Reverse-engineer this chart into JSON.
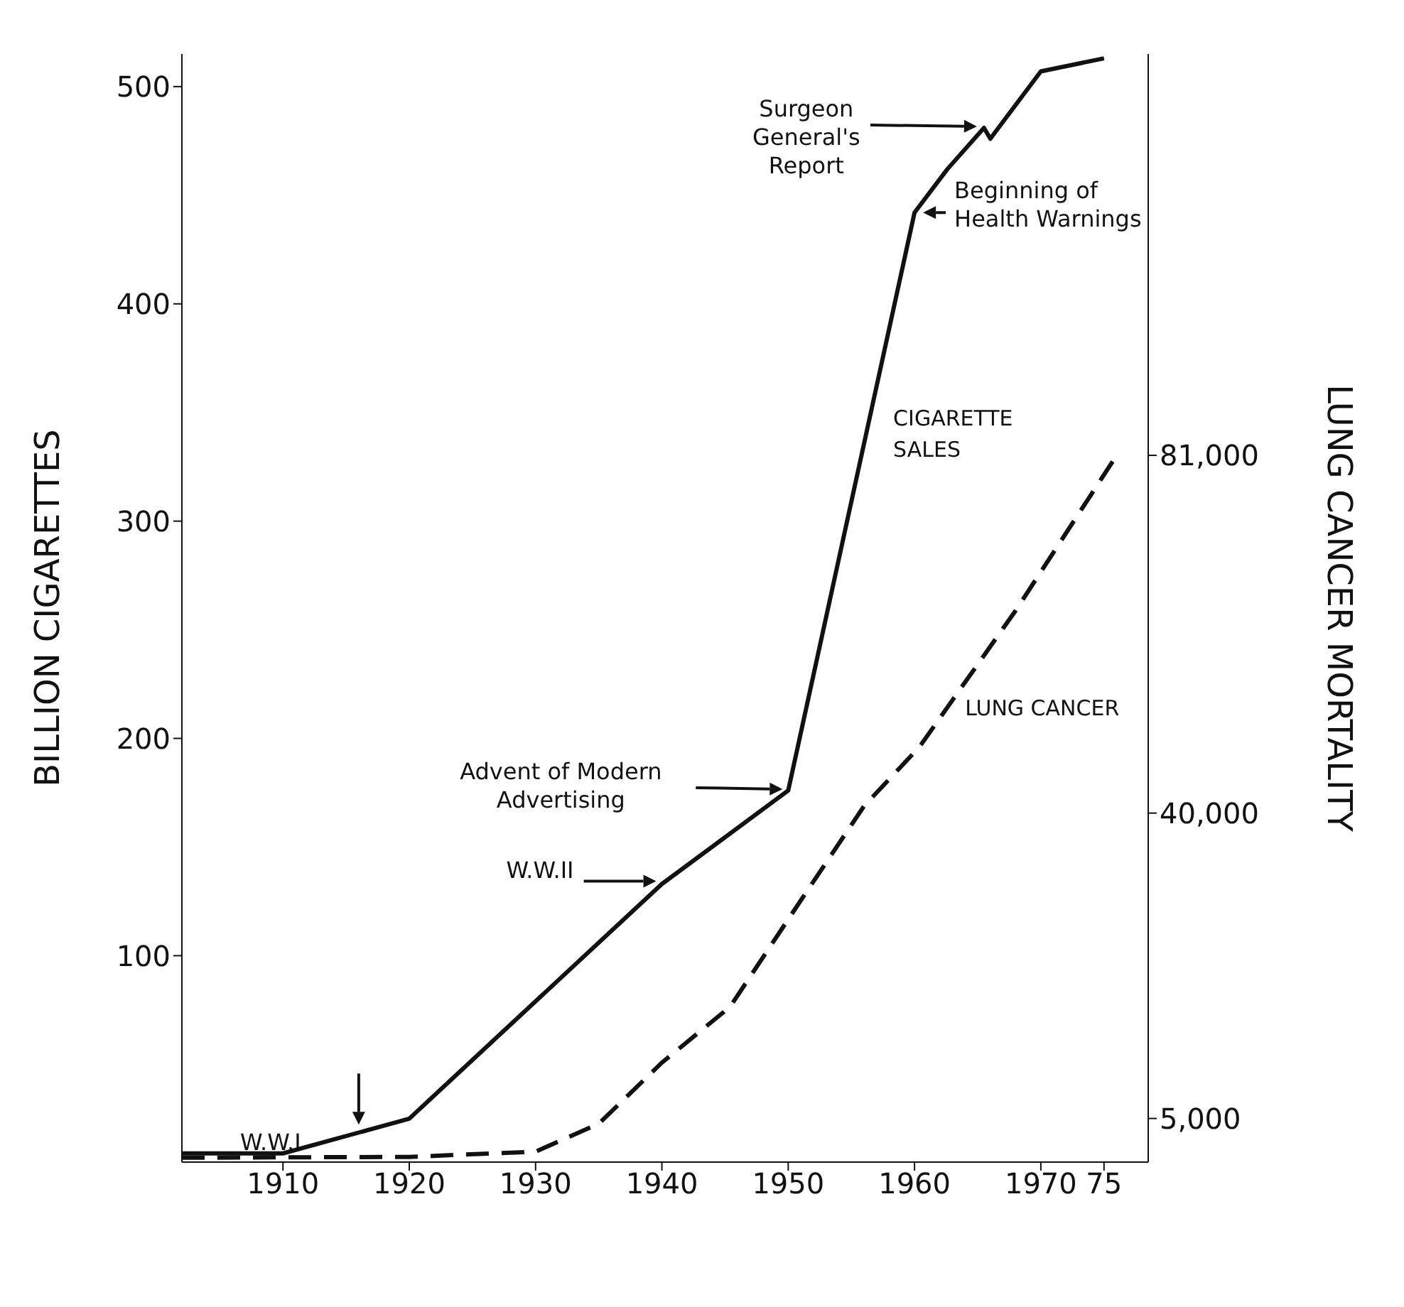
{
  "chart_data": {
    "type": "line",
    "x": [
      1902,
      1910,
      1920,
      1940,
      1950,
      1960,
      1962.6,
      1965.5,
      1966,
      1970,
      1975
    ],
    "series": [
      {
        "name": "CIGARETTE SALES",
        "color": "#111111",
        "line_style": "solid",
        "values": [
          9,
          9,
          25,
          133,
          176,
          442,
          462,
          481,
          476,
          507,
          513
        ]
      },
      {
        "name": "LUNG CANCER",
        "color": "#111111",
        "line_style": "dashed",
        "axis": "y2",
        "x": [
          1902,
          1920,
          1930,
          1935,
          1940,
          1945.4,
          1951,
          1956,
          1960.4,
          1968,
          1976
        ],
        "values": [
          500,
          600,
          1200,
          4400,
          11400,
          17800,
          30000,
          40800,
          47600,
          63200,
          81000
        ]
      }
    ],
    "xlim": [
      1902,
      1978.5
    ],
    "xticks": [
      1910,
      1920,
      1930,
      1940,
      1950,
      1960,
      1970,
      {
        "value": 1975,
        "label": "75"
      }
    ],
    "ylim": [
      5,
      515
    ],
    "yticks": [
      100,
      200,
      300,
      400,
      500
    ],
    "y2lim": [
      0,
      127000
    ],
    "y2ticks": [
      {
        "value": 5000,
        "label": "5,000"
      },
      {
        "value": 40000,
        "label": "40,000"
      },
      {
        "value": 81000,
        "label": "81,000"
      }
    ],
    "ylabel": "BILLION CIGARETTES",
    "y2label": "LUNG CANCER MORTALITY",
    "annotations": [
      {
        "text": "W.W.I",
        "x": 1916,
        "y": 17
      },
      "W.W.II",
      "Advent of Modern Advertising",
      "Surgeon General's Report",
      {
        "text": "Beginning of Health Warnings",
        "x": 1960,
        "y": 442
      }
    ]
  }
}
